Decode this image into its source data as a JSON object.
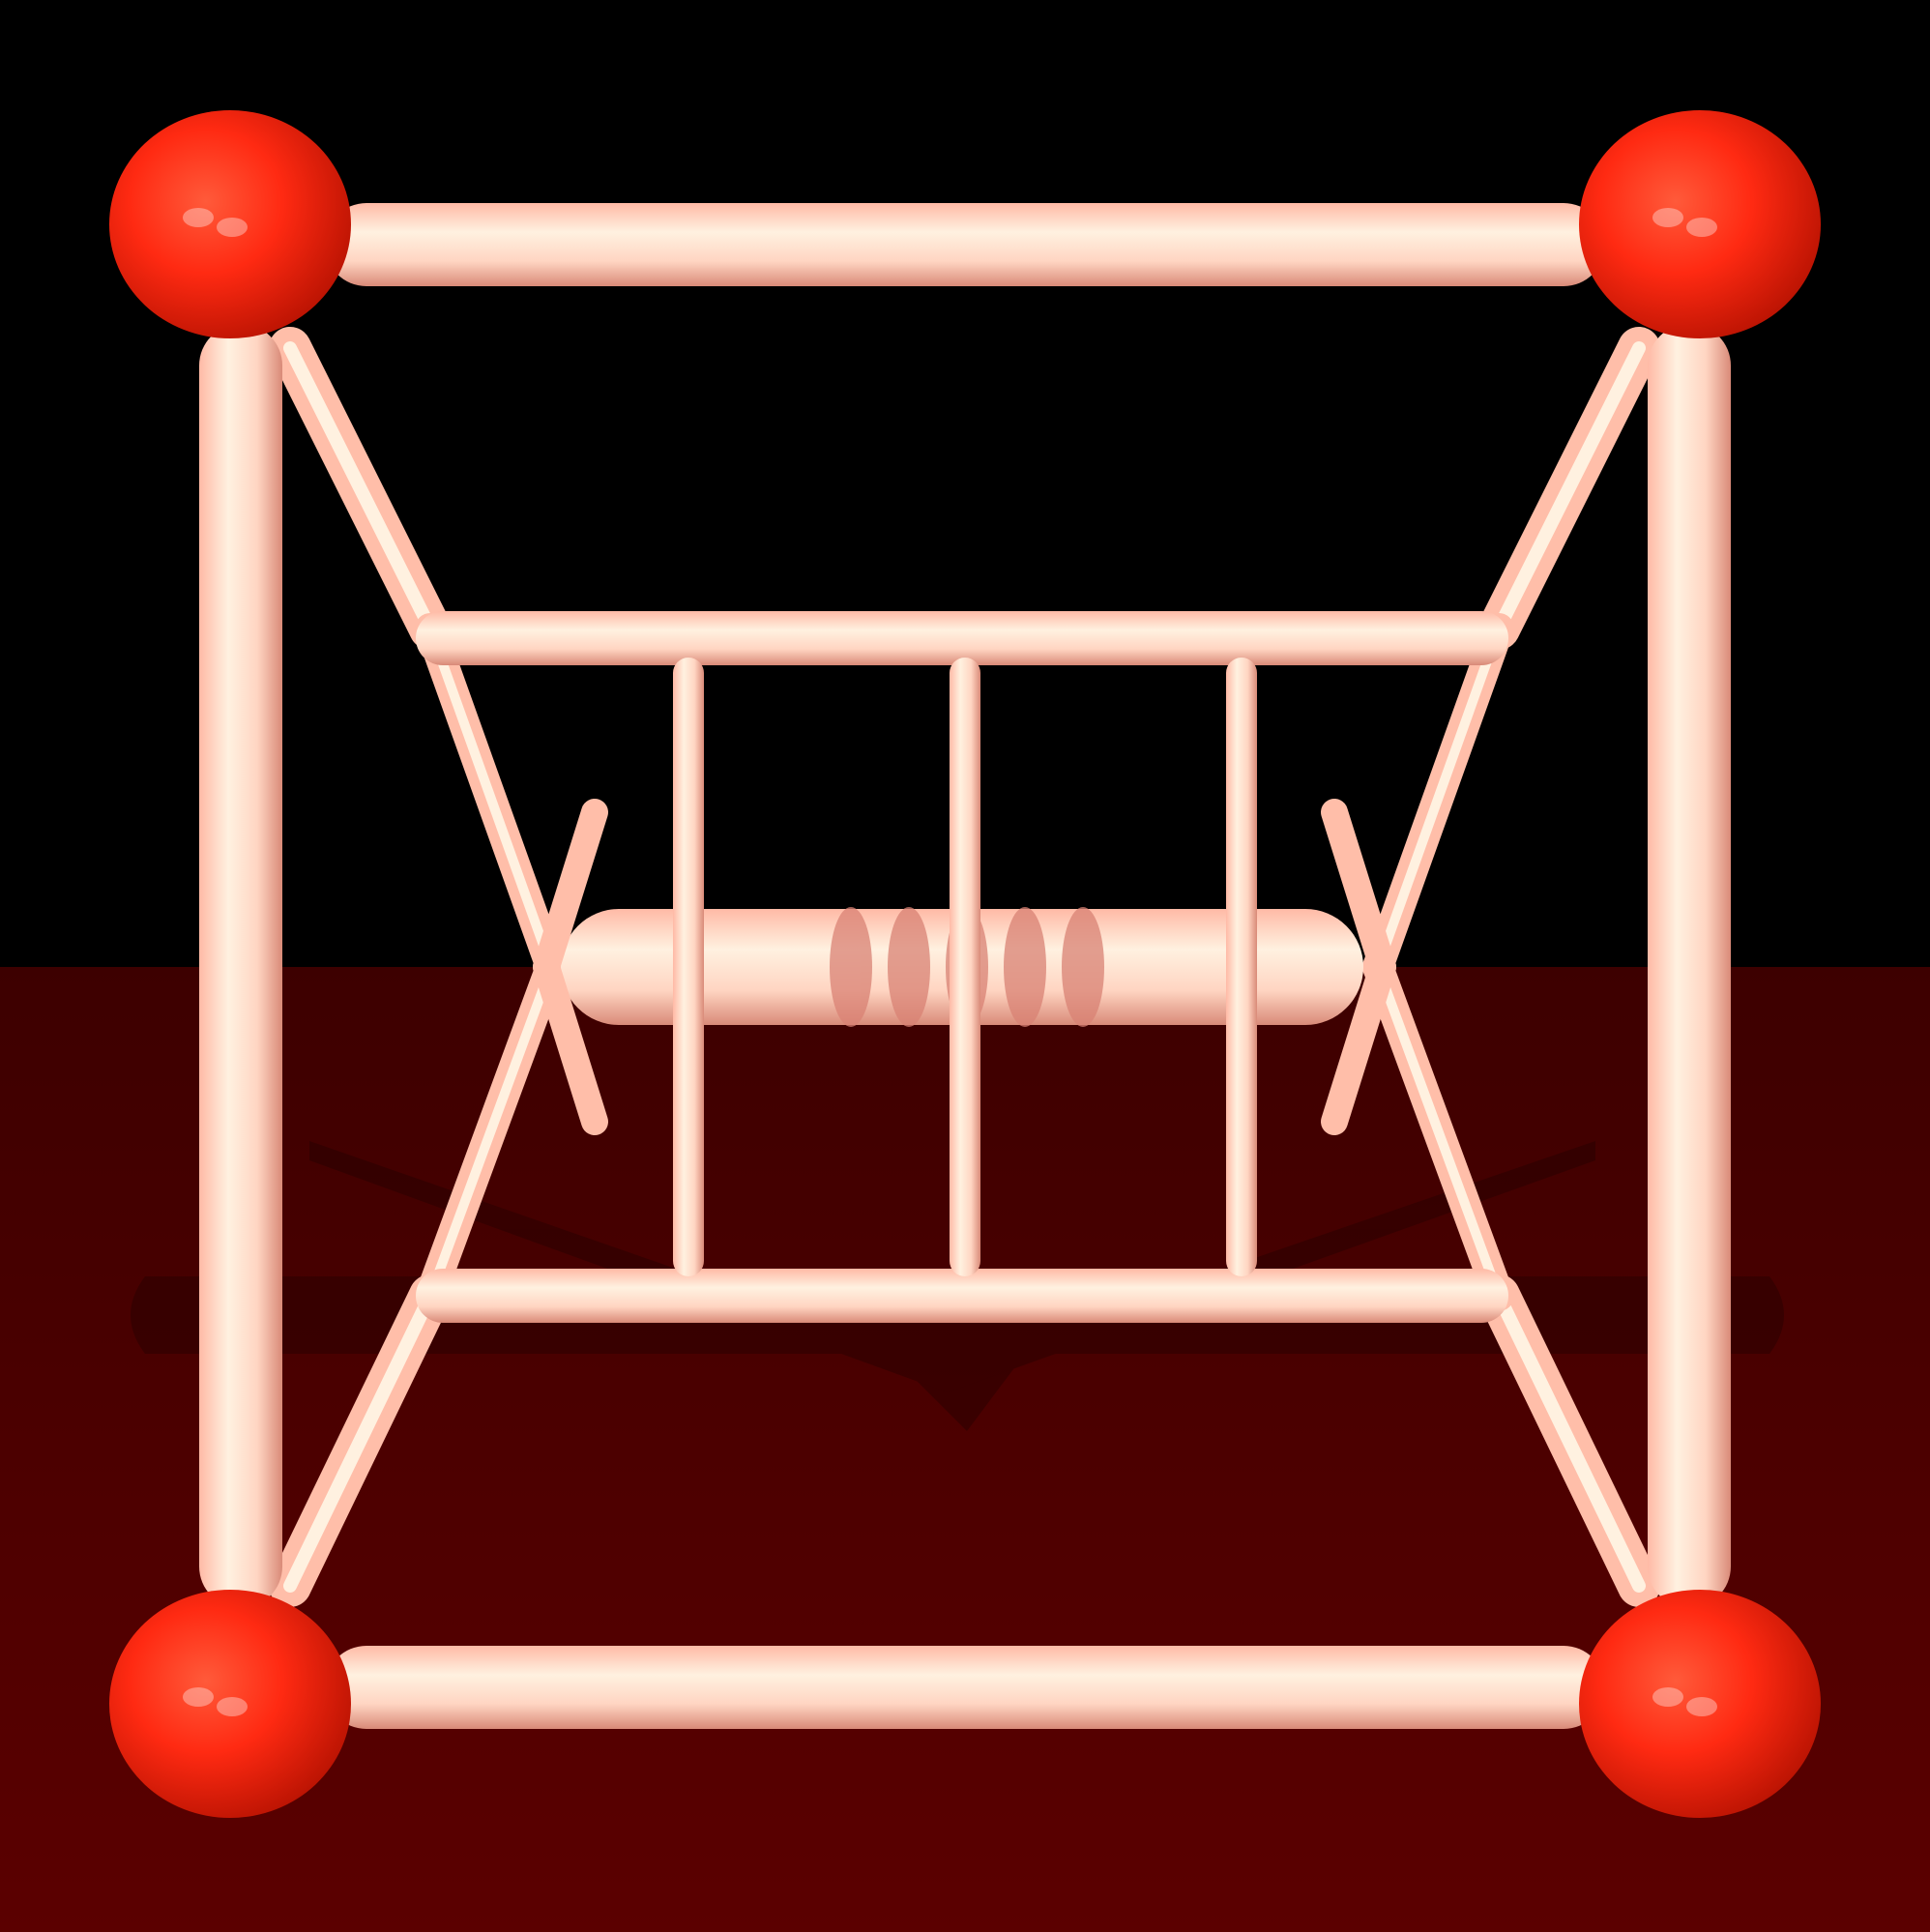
{
  "scene": {
    "colors": {
      "sky": "#000000",
      "floor": "#5a0000",
      "floor_dark": "#3a0000",
      "strut_light": "#ffe6d2",
      "strut_mid": "#ffbea9",
      "strut_shadow": "#d98274",
      "node_red": "#ff2a12",
      "node_dark": "#b01000"
    }
  }
}
